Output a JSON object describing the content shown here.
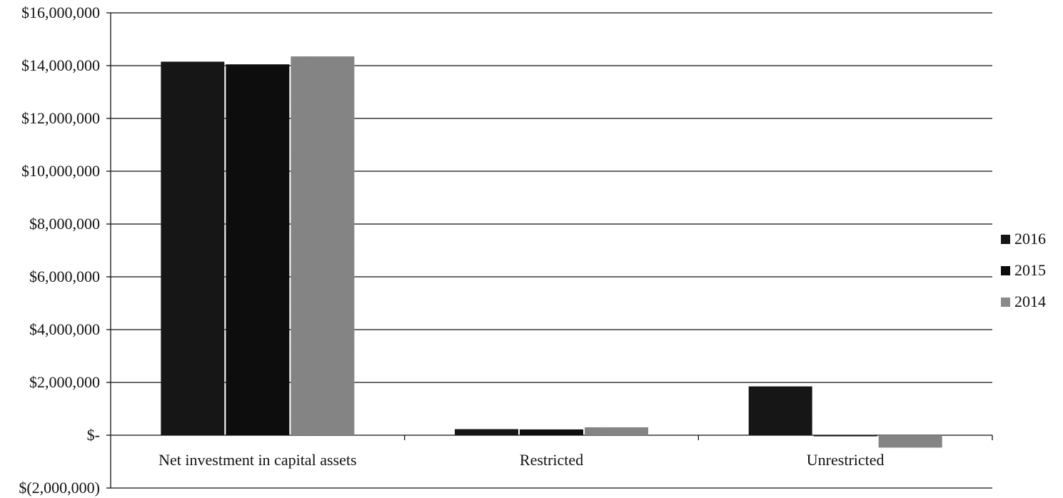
{
  "chart_data": {
    "type": "bar",
    "categories": [
      "Net investment in capital assets",
      "Restricted",
      "Unrestricted"
    ],
    "series": [
      {
        "name": "2016",
        "values": [
          14150000,
          230000,
          1850000
        ],
        "color": "#161616"
      },
      {
        "name": "2015",
        "values": [
          14050000,
          220000,
          -20000
        ],
        "color": "#0b0b0b"
      },
      {
        "name": "2014",
        "values": [
          14350000,
          300000,
          -470000
        ],
        "color": "#8a8a8a"
      }
    ],
    "ylim": [
      -2000000,
      16000000
    ],
    "yticks": [
      16000000,
      14000000,
      12000000,
      10000000,
      8000000,
      6000000,
      4000000,
      2000000,
      0,
      -2000000
    ],
    "ytick_labels": [
      "$16,000,000",
      "$14,000,000",
      "$12,000,000",
      "$10,000,000",
      "$8,000,000",
      "$6,000,000",
      "$4,000,000",
      "$2,000,000",
      "$-",
      "$(2,000,000)"
    ],
    "grid": true,
    "legend_position": "right"
  }
}
